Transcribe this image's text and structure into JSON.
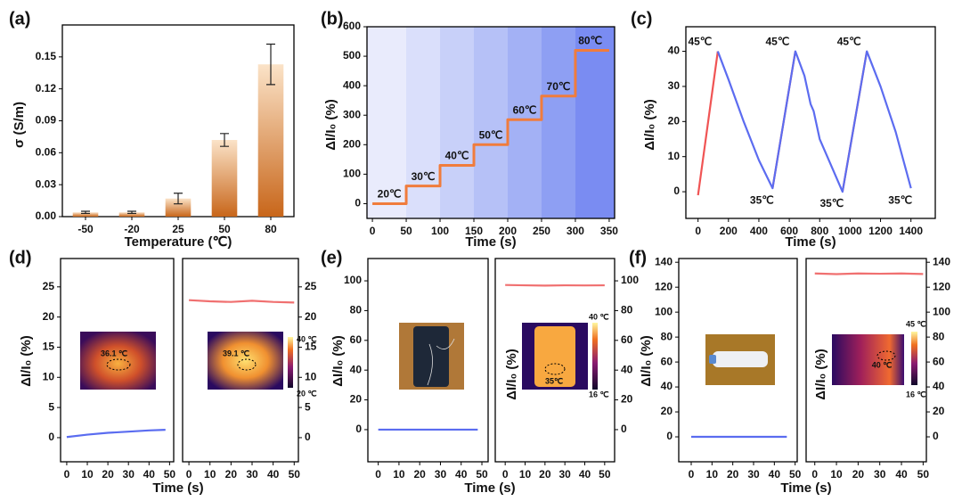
{
  "chart_data": [
    {
      "type": "bar",
      "panel_label": "(a)",
      "xlabel": "Temperature (℃)",
      "ylabel": "σ (S/m)",
      "categories": [
        "-50",
        "-20",
        "25",
        "50",
        "80"
      ],
      "values": [
        0.004,
        0.004,
        0.017,
        0.072,
        0.143
      ],
      "errors": [
        0.001,
        0.001,
        0.005,
        0.006,
        0.019
      ],
      "color": "#c8661a",
      "ylim": [
        0,
        0.18
      ],
      "yticks": [
        {
          "value": 0,
          "label": "0.00"
        },
        0.03,
        0.06,
        0.09,
        0.12,
        0.15
      ]
    },
    {
      "type": "line",
      "panel_label": "(b)",
      "xlabel": "Time (s)",
      "ylabel": "ΔI/I₀ (%)",
      "x": [
        0,
        50,
        50,
        100,
        100,
        150,
        150,
        200,
        200,
        250,
        250,
        300,
        300,
        350
      ],
      "series": [
        {
          "color": "#f07c3c",
          "values": [
            0,
            0,
            60,
            60,
            130,
            130,
            200,
            200,
            285,
            285,
            365,
            365,
            520,
            520
          ]
        }
      ],
      "xlim": [
        -8,
        358
      ],
      "ylim": [
        -50,
        600
      ],
      "xticks": [
        0,
        50,
        100,
        150,
        200,
        250,
        300,
        350
      ],
      "yticks": [
        0,
        100,
        200,
        300,
        400,
        500,
        600
      ],
      "annotations": [
        {
          "text": "20℃",
          "x": 25,
          "y": 0
        },
        {
          "text": "30℃",
          "x": 75,
          "y": 60
        },
        {
          "text": "40℃",
          "x": 125,
          "y": 130
        },
        {
          "text": "50℃",
          "x": 175,
          "y": 200
        },
        {
          "text": "60℃",
          "x": 225,
          "y": 285
        },
        {
          "text": "70℃",
          "x": 275,
          "y": 365
        },
        {
          "text": "80℃",
          "x": 322,
          "y": 520
        }
      ]
    },
    {
      "type": "line",
      "panel_label": "(c)",
      "xlabel": "Time (s)",
      "ylabel": "ΔI/I₀ (%)",
      "x": [
        0,
        130,
        200,
        300,
        400,
        490,
        640,
        700,
        740,
        760,
        800,
        850,
        950,
        1110,
        1200,
        1300,
        1400
      ],
      "series": [
        {
          "color": "#f05454",
          "values": [
            -1,
            40,
            null,
            null,
            null,
            1,
            40,
            null,
            null,
            null,
            null,
            null,
            0,
            40,
            null,
            null,
            null
          ]
        },
        {
          "color": "#5c6cf0",
          "values": [
            null,
            40,
            32,
            20,
            9,
            1,
            40,
            33,
            25,
            23,
            15,
            10,
            0,
            40,
            30,
            17,
            1
          ]
        }
      ],
      "xlim": [
        -80,
        1560
      ],
      "ylim": [
        -7.6,
        47
      ],
      "xticks": [
        0,
        200,
        400,
        600,
        800,
        1000,
        1200,
        1400
      ],
      "yticks": [
        0,
        10,
        20,
        30,
        40
      ],
      "annotations": [
        {
          "text": "45℃",
          "x": 130,
          "y": 40
        },
        {
          "text": "45℃",
          "x": 640,
          "y": 40
        },
        {
          "text": "45℃",
          "x": 1110,
          "y": 40
        },
        {
          "text": "35℃",
          "x": 490,
          "y": 1
        },
        {
          "text": "35℃",
          "x": 950,
          "y": 0
        },
        {
          "text": "35℃",
          "x": 1400,
          "y": 1
        }
      ]
    },
    {
      "type": "line",
      "panel_label": "(d)",
      "xlabel": "Time (s)",
      "ylabel": "ΔI/I₀ (%)",
      "inset_label": "36.1 ℃",
      "x": [
        0,
        10,
        20,
        30,
        40,
        48
      ],
      "series": [
        {
          "color": "#5a6cf0",
          "values": [
            0.1,
            0.5,
            0.8,
            1.0,
            1.2,
            1.3
          ]
        }
      ],
      "xlim": [
        -3,
        52
      ],
      "ylim": [
        -4,
        29.7
      ],
      "xticks": [
        0,
        10,
        20,
        30,
        40,
        50
      ],
      "yticks": [
        0,
        5,
        10,
        15,
        20,
        25
      ],
      "y_axis_side": "left"
    },
    {
      "type": "line",
      "inset_label": "39.1 ℃",
      "colorbar_labels": [
        "40 ℃",
        "20 ℃"
      ],
      "x": [
        0,
        10,
        20,
        30,
        40,
        50
      ],
      "series": [
        {
          "color": "#f07070",
          "values": [
            22.8,
            22.6,
            22.5,
            22.7,
            22.5,
            22.4
          ]
        }
      ],
      "xlim": [
        -3,
        52
      ],
      "ylim": [
        -4,
        29.7
      ],
      "xticks": [
        0,
        10,
        20,
        30,
        40,
        50
      ],
      "yticks": [
        0,
        5,
        10,
        15,
        20,
        25
      ],
      "y_axis_side": "right"
    },
    {
      "type": "line",
      "panel_label": "(e)",
      "xlabel": "Time (s)",
      "ylabel": "ΔI/I₀ (%)",
      "x": [
        0,
        10,
        20,
        30,
        40,
        48
      ],
      "series": [
        {
          "color": "#5a6cf0",
          "values": [
            0,
            0,
            0,
            0,
            0,
            0
          ]
        }
      ],
      "xlim": [
        -5,
        53
      ],
      "ylim": [
        -21.6,
        115
      ],
      "xticks": [
        0,
        10,
        20,
        30,
        40,
        50
      ],
      "yticks": [
        0,
        20,
        40,
        60,
        80,
        100
      ],
      "y_axis_side": "left"
    },
    {
      "type": "line",
      "ylabel": "ΔI/I₀ (%)",
      "inset_label": "35℃",
      "colorbar_labels": [
        "40 ℃",
        "16 ℃"
      ],
      "x": [
        0,
        10,
        20,
        30,
        40,
        50
      ],
      "series": [
        {
          "color": "#f07070",
          "values": [
            97.2,
            97,
            96.8,
            97,
            96.9,
            97
          ]
        }
      ],
      "xlim": [
        -5,
        55
      ],
      "ylim": [
        -21.6,
        115
      ],
      "xticks": [
        0,
        10,
        20,
        30,
        40,
        50
      ],
      "yticks": [
        0,
        20,
        40,
        60,
        80,
        100
      ],
      "y_axis_side": "right"
    },
    {
      "type": "line",
      "panel_label": "(f)",
      "xlabel": "Time (s)",
      "ylabel": "ΔI/I₀ (%)",
      "x": [
        0,
        10,
        20,
        30,
        40,
        46
      ],
      "series": [
        {
          "color": "#5a6cf0",
          "values": [
            0,
            0,
            0,
            0,
            0,
            0
          ]
        }
      ],
      "xlim": [
        -6,
        51
      ],
      "ylim": [
        -20,
        143
      ],
      "xticks": [
        0,
        10,
        20,
        30,
        40,
        50
      ],
      "yticks": [
        0,
        20,
        40,
        60,
        80,
        100,
        120,
        140
      ],
      "y_axis_side": "left"
    },
    {
      "type": "line",
      "ylabel": "ΔI/I₀ (%)",
      "inset_label": "40 ℃",
      "colorbar_labels": [
        "45 ℃",
        "16 ℃"
      ],
      "x": [
        0,
        10,
        20,
        30,
        40,
        50
      ],
      "series": [
        {
          "color": "#f07070",
          "values": [
            131,
            130.5,
            131,
            130.8,
            131,
            130.6
          ]
        }
      ],
      "xlim": [
        -4,
        51.5
      ],
      "ylim": [
        -20,
        143
      ],
      "xticks": [
        0,
        10,
        20,
        30,
        40,
        50
      ],
      "yticks": [
        0,
        20,
        40,
        60,
        80,
        100,
        120,
        140
      ],
      "y_axis_side": "right"
    }
  ]
}
